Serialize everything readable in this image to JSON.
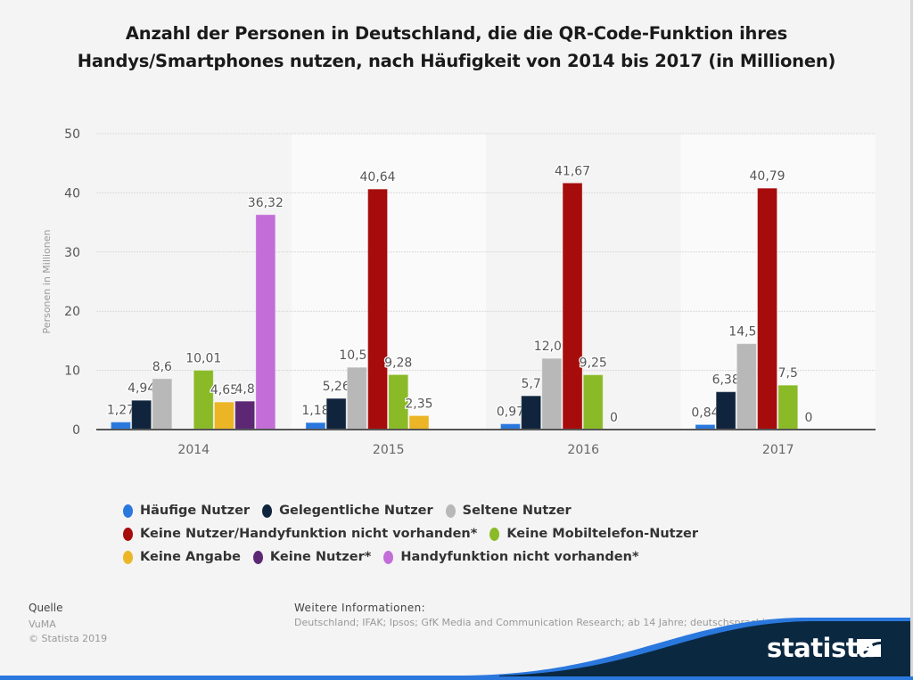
{
  "title": "Anzahl der Personen in Deutschland, die die QR-Code-Funktion ihres Handys/Smartphones nutzen, nach Häufigkeit von 2014 bis 2017 (in Millionen)",
  "chart_data": {
    "type": "bar",
    "title": "Anzahl der Personen in Deutschland, die die QR-Code-Funktion ihres Handys/Smartphones nutzen, nach Häufigkeit von 2014 bis 2017 (in Millionen)",
    "xlabel": "",
    "ylabel": "Personen in Millionen",
    "ylim": [
      0,
      50
    ],
    "yticks": [
      0,
      10,
      20,
      30,
      40,
      50
    ],
    "grid": true,
    "legend_position": "bottom",
    "categories": [
      "2014",
      "2015",
      "2016",
      "2017"
    ],
    "series": [
      {
        "name": "Häufige Nutzer",
        "color": "#2a78de",
        "values": [
          1.27,
          1.18,
          0.97,
          0.84
        ],
        "labels": [
          "1,27",
          "1,18",
          "0,97",
          "0,84"
        ]
      },
      {
        "name": "Gelegentliche Nutzer",
        "color": "#10253d",
        "values": [
          4.94,
          5.26,
          5.7,
          6.38
        ],
        "labels": [
          "4,94",
          "5,26",
          "5,7",
          "6,38"
        ]
      },
      {
        "name": "Seltene Nutzer",
        "color": "#b8b8b8",
        "values": [
          8.6,
          10.52,
          12.03,
          14.51
        ],
        "labels": [
          "8,6",
          "10,52",
          "12,03",
          "14,51"
        ]
      },
      {
        "name": "Keine Nutzer/Handyfunktion nicht vorhanden*",
        "color": "#a70c0c",
        "values": [
          null,
          40.64,
          41.67,
          40.79
        ],
        "labels": [
          null,
          "40,64",
          "41,67",
          "40,79"
        ]
      },
      {
        "name": "Keine Mobiltelefon-Nutzer",
        "color": "#8aba27",
        "values": [
          10.01,
          9.28,
          9.25,
          7.5
        ],
        "labels": [
          "10,01",
          "9,28",
          "9,25",
          "7,5"
        ]
      },
      {
        "name": "Keine Angabe",
        "color": "#ebb526",
        "values": [
          4.65,
          2.35,
          0,
          0
        ],
        "labels": [
          "4,65",
          "2,35",
          "0",
          "0"
        ]
      },
      {
        "name": "Keine Nutzer*",
        "color": "#5c2874",
        "values": [
          4.8,
          null,
          null,
          null
        ],
        "labels": [
          "4,8",
          null,
          null,
          null
        ]
      },
      {
        "name": "Handyfunktion nicht vorhanden*",
        "color": "#c36ed8",
        "values": [
          36.32,
          null,
          null,
          null
        ],
        "labels": [
          "36,32",
          null,
          null,
          null
        ]
      }
    ]
  },
  "legend_rows": [
    [
      0,
      1,
      2
    ],
    [
      3,
      4
    ],
    [
      5,
      6,
      7
    ]
  ],
  "source": {
    "heading": "Quelle",
    "lines": [
      "VuMA",
      "© Statista 2019"
    ]
  },
  "info": {
    "heading": "Weitere Informationen:",
    "text": "Deutschland; IFAK; Ipsos; GfK Media and Communication Research; ab 14 Jahre; deutschsprachige Bevölkerung"
  },
  "logo": {
    "text": "statista",
    "colors": {
      "navy": "#0b2841",
      "blue": "#2a78de"
    }
  }
}
